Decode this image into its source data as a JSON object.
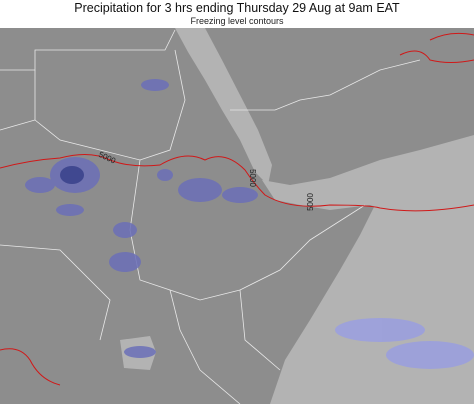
{
  "header": {
    "title": "Precipitation for 3 hrs ending Thursday 29 Aug at 9am EAT",
    "subtitle": "Freezing level contours"
  },
  "map": {
    "contour_labels": [
      "5000",
      "5000",
      "5000"
    ]
  }
}
